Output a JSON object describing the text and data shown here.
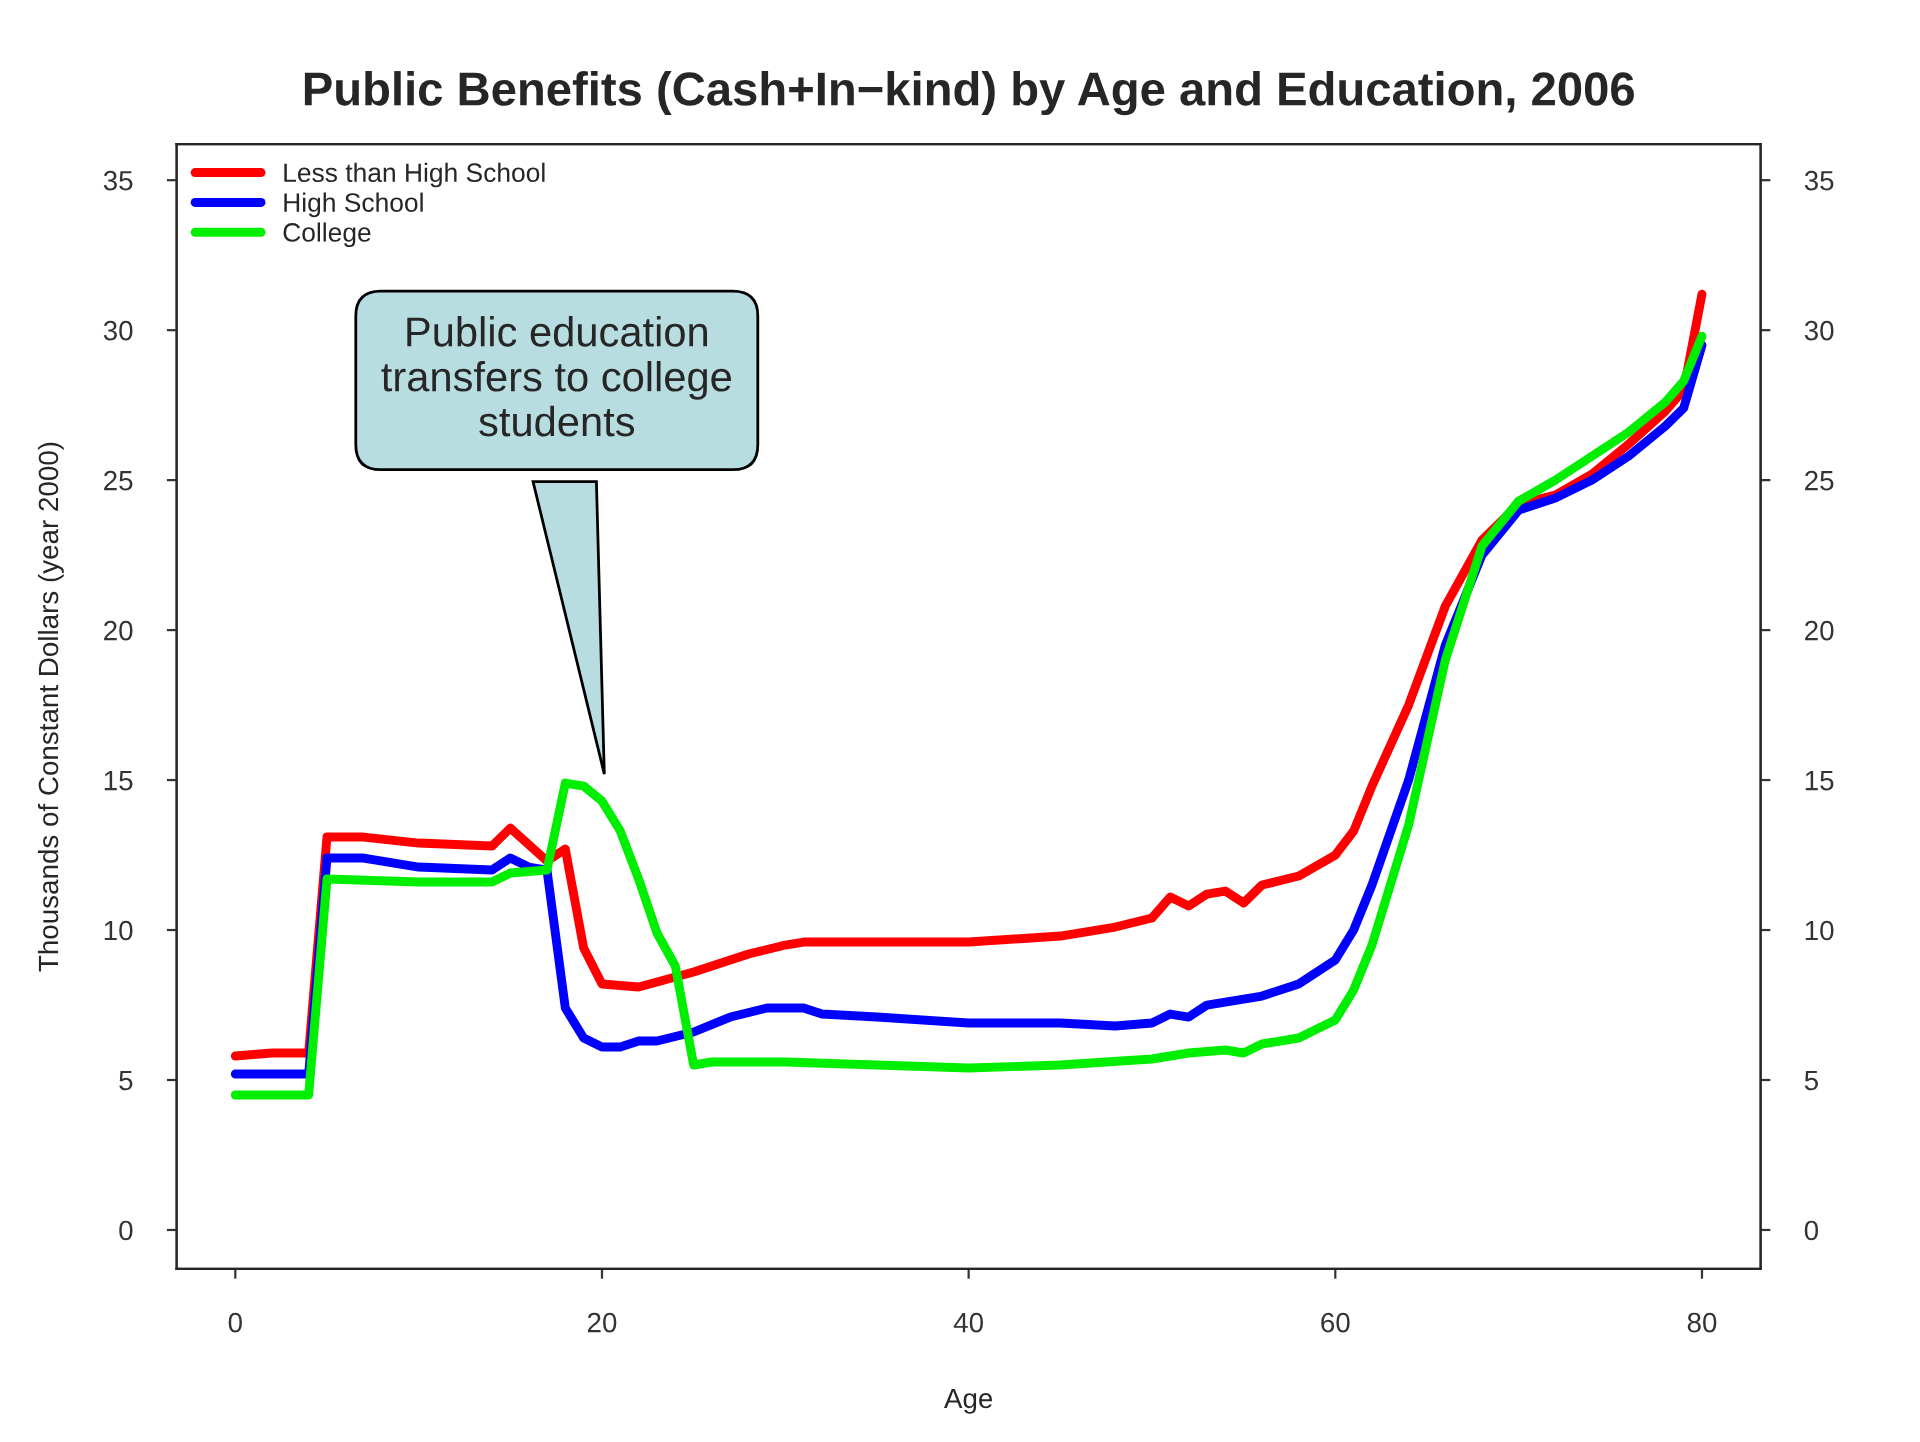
{
  "chart_data": {
    "type": "line",
    "title": "Public Benefits (Cash+In−kind) by Age and Education, 2006",
    "xlabel": "Age",
    "ylabel": "Thousands of Constant Dollars (year 2000)",
    "series": [
      {
        "name": "Less than High School",
        "color": "#ff0000",
        "x": [
          0,
          2,
          4,
          5,
          7,
          10,
          14,
          15,
          17,
          18,
          19,
          20,
          22,
          25,
          28,
          30,
          31,
          35,
          40,
          45,
          48,
          50,
          51,
          52,
          53,
          54,
          55,
          56,
          58,
          60,
          61,
          62,
          64,
          66,
          68,
          70,
          72,
          74,
          76,
          78,
          79,
          80
        ],
        "values": [
          5.8,
          5.9,
          5.9,
          13.1,
          13.1,
          12.9,
          12.8,
          13.4,
          12.3,
          12.7,
          9.4,
          8.2,
          8.1,
          8.6,
          9.2,
          9.5,
          9.6,
          9.6,
          9.6,
          9.8,
          10.1,
          10.4,
          11.1,
          10.8,
          11.2,
          11.3,
          10.9,
          11.5,
          11.8,
          12.5,
          13.3,
          14.8,
          17.5,
          20.8,
          23.0,
          24.2,
          24.5,
          25.2,
          26.2,
          27.3,
          28.0,
          31.2
        ]
      },
      {
        "name": "High School",
        "color": "#0000ff",
        "x": [
          0,
          2,
          4,
          5,
          7,
          10,
          14,
          15,
          16,
          17,
          18,
          19,
          20,
          21,
          22,
          23,
          25,
          27,
          29,
          31,
          32,
          35,
          40,
          45,
          48,
          50,
          51,
          52,
          53,
          56,
          58,
          60,
          61,
          62,
          64,
          66,
          68,
          70,
          72,
          74,
          76,
          78,
          79,
          80
        ],
        "values": [
          5.2,
          5.2,
          5.2,
          12.4,
          12.4,
          12.1,
          12.0,
          12.4,
          12.1,
          12.0,
          7.4,
          6.4,
          6.1,
          6.1,
          6.3,
          6.3,
          6.6,
          7.1,
          7.4,
          7.4,
          7.2,
          7.1,
          6.9,
          6.9,
          6.8,
          6.9,
          7.2,
          7.1,
          7.5,
          7.8,
          8.2,
          9.0,
          10.0,
          11.5,
          15.0,
          19.5,
          22.5,
          24.0,
          24.4,
          25.0,
          25.8,
          26.8,
          27.4,
          29.5
        ]
      },
      {
        "name": "College",
        "color": "#00ee00",
        "x": [
          0,
          2,
          4,
          5,
          10,
          14,
          15,
          17,
          18,
          19,
          20,
          21,
          22,
          23,
          24,
          25,
          26,
          30,
          35,
          40,
          45,
          50,
          52,
          54,
          55,
          56,
          58,
          60,
          61,
          62,
          64,
          66,
          68,
          70,
          72,
          74,
          76,
          78,
          79,
          80
        ],
        "values": [
          4.5,
          4.5,
          4.5,
          11.7,
          11.6,
          11.6,
          11.9,
          12.0,
          14.9,
          14.8,
          14.3,
          13.3,
          11.7,
          9.9,
          8.8,
          5.5,
          5.6,
          5.6,
          5.5,
          5.4,
          5.5,
          5.7,
          5.9,
          6.0,
          5.9,
          6.2,
          6.4,
          7.0,
          8.0,
          9.5,
          13.5,
          19.0,
          22.8,
          24.3,
          25.0,
          25.8,
          26.6,
          27.6,
          28.3,
          29.8
        ]
      }
    ],
    "xlim": [
      -3.2,
      83.2
    ],
    "xticks": [
      0,
      20,
      40,
      60,
      80
    ],
    "ylim": [
      -1.3,
      36.2
    ],
    "yticks": [
      0,
      5,
      10,
      15,
      20,
      25,
      30,
      35
    ],
    "y2lim": [
      -1.3,
      36.2
    ],
    "y2ticks": [
      0,
      5,
      10,
      15,
      20,
      25,
      30,
      35
    ],
    "annotations": [
      "Public education\ntransfers to college\nstudents"
    ],
    "legend": "top left",
    "grid": false
  }
}
